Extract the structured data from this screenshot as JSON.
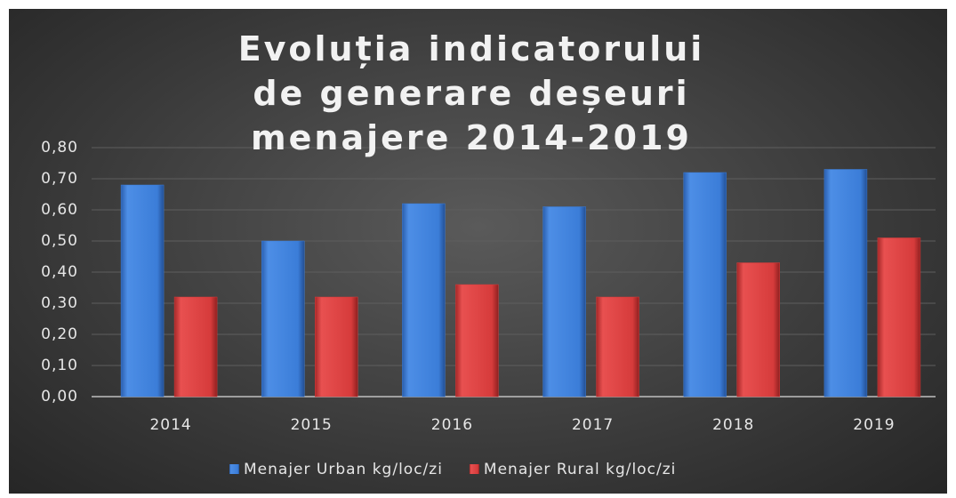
{
  "chart_data": {
    "type": "bar",
    "title": "Evoluția indicatorului de generare deșeuri menajere 2014-2019",
    "categories": [
      "2014",
      "2015",
      "2016",
      "2017",
      "2018",
      "2019"
    ],
    "series": [
      {
        "name": "Menajer Urban kg/loc/zi",
        "color": "#3b7dd8",
        "values": [
          0.68,
          0.5,
          0.62,
          0.61,
          0.72,
          0.73
        ]
      },
      {
        "name": "Menajer Rural kg/loc/zi",
        "color": "#d63b3b",
        "values": [
          0.32,
          0.32,
          0.36,
          0.32,
          0.43,
          0.51
        ]
      }
    ],
    "ylim": [
      0,
      0.8
    ],
    "yticks": [
      {
        "value": 0,
        "label": "0,00"
      },
      {
        "value": 0.1,
        "label": "0,10"
      },
      {
        "value": 0.2,
        "label": "0,20"
      },
      {
        "value": 0.3,
        "label": "0,30"
      },
      {
        "value": 0.4,
        "label": "0,40"
      },
      {
        "value": 0.5,
        "label": "0,50"
      },
      {
        "value": 0.6,
        "label": "0,60"
      },
      {
        "value": 0.7,
        "label": "0,70"
      },
      {
        "value": 0.8,
        "label": "0,80"
      }
    ],
    "grid": true,
    "legend": "bottom"
  }
}
